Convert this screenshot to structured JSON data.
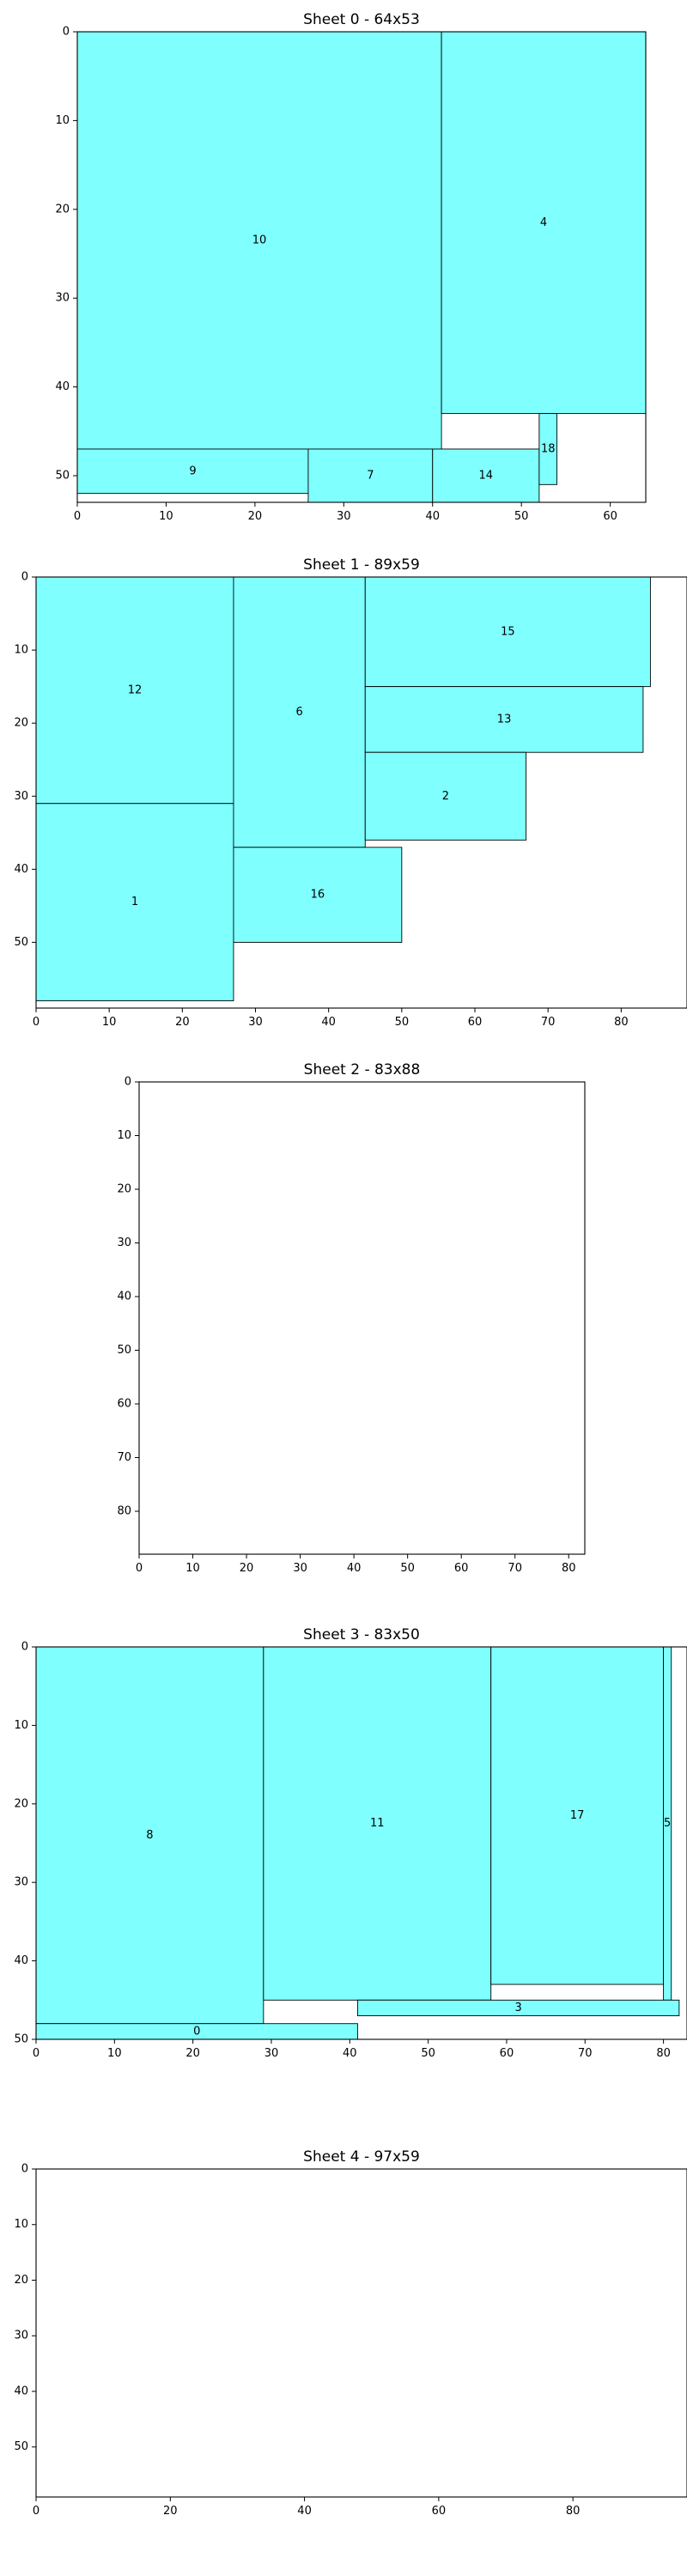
{
  "chart_data": [
    {
      "type": "rectangles",
      "title": "Sheet 0 - 64x53",
      "xlim": [
        0,
        64
      ],
      "ylim": [
        53,
        0
      ],
      "xticks": [
        0,
        10,
        20,
        30,
        40,
        50,
        60
      ],
      "yticks": [
        0,
        10,
        20,
        30,
        40,
        50
      ],
      "color": "#80ffff",
      "pieces": [
        {
          "label": "10",
          "x": 0,
          "y": 0,
          "w": 41,
          "h": 47
        },
        {
          "label": "4",
          "x": 41,
          "y": 0,
          "w": 23,
          "h": 43
        },
        {
          "label": "9",
          "x": 0,
          "y": 47,
          "w": 26,
          "h": 5
        },
        {
          "label": "7",
          "x": 26,
          "y": 47,
          "w": 14,
          "h": 6
        },
        {
          "label": "14",
          "x": 40,
          "y": 47,
          "w": 12,
          "h": 6
        },
        {
          "label": "18",
          "x": 52,
          "y": 43,
          "w": 2,
          "h": 8
        }
      ]
    },
    {
      "type": "rectangles",
      "title": "Sheet 1 - 89x59",
      "xlim": [
        0,
        89
      ],
      "ylim": [
        59,
        0
      ],
      "xticks": [
        0,
        10,
        20,
        30,
        40,
        50,
        60,
        70,
        80
      ],
      "yticks": [
        0,
        10,
        20,
        30,
        40,
        50
      ],
      "color": "#80ffff",
      "pieces": [
        {
          "label": "12",
          "x": 0,
          "y": 0,
          "w": 27,
          "h": 31
        },
        {
          "label": "1",
          "x": 0,
          "y": 31,
          "w": 27,
          "h": 27
        },
        {
          "label": "6",
          "x": 27,
          "y": 0,
          "w": 18,
          "h": 37
        },
        {
          "label": "16",
          "x": 27,
          "y": 37,
          "w": 23,
          "h": 13
        },
        {
          "label": "15",
          "x": 45,
          "y": 0,
          "w": 39,
          "h": 15
        },
        {
          "label": "13",
          "x": 45,
          "y": 15,
          "w": 38,
          "h": 9
        },
        {
          "label": "2",
          "x": 45,
          "y": 24,
          "w": 22,
          "h": 12
        }
      ]
    },
    {
      "type": "rectangles",
      "title": "Sheet 2 - 83x88",
      "xlim": [
        0,
        83
      ],
      "ylim": [
        88,
        0
      ],
      "xticks": [
        0,
        10,
        20,
        30,
        40,
        50,
        60,
        70,
        80
      ],
      "yticks": [
        0,
        10,
        20,
        30,
        40,
        50,
        60,
        70,
        80
      ],
      "color": "#80ffff",
      "pieces": []
    },
    {
      "type": "rectangles",
      "title": "Sheet 3 - 83x50",
      "xlim": [
        0,
        83
      ],
      "ylim": [
        50,
        0
      ],
      "xticks": [
        0,
        10,
        20,
        30,
        40,
        50,
        60,
        70,
        80
      ],
      "yticks": [
        0,
        10,
        20,
        30,
        40,
        50
      ],
      "color": "#80ffff",
      "pieces": [
        {
          "label": "8",
          "x": 0,
          "y": 0,
          "w": 29,
          "h": 48
        },
        {
          "label": "11",
          "x": 29,
          "y": 0,
          "w": 29,
          "h": 45
        },
        {
          "label": "17",
          "x": 58,
          "y": 0,
          "w": 22,
          "h": 43
        },
        {
          "label": "5",
          "x": 80,
          "y": 0,
          "w": 1,
          "h": 45
        },
        {
          "label": "3",
          "x": 41,
          "y": 45,
          "w": 41,
          "h": 2
        },
        {
          "label": "0",
          "x": 0,
          "y": 48,
          "w": 41,
          "h": 2
        }
      ]
    },
    {
      "type": "rectangles",
      "title": "Sheet 4 - 97x59",
      "xlim": [
        0,
        97
      ],
      "ylim": [
        59,
        0
      ],
      "xticks": [
        0,
        20,
        40,
        60,
        80
      ],
      "yticks": [
        0,
        10,
        20,
        30,
        40,
        50
      ],
      "color": "#80ffff",
      "pieces": []
    }
  ]
}
